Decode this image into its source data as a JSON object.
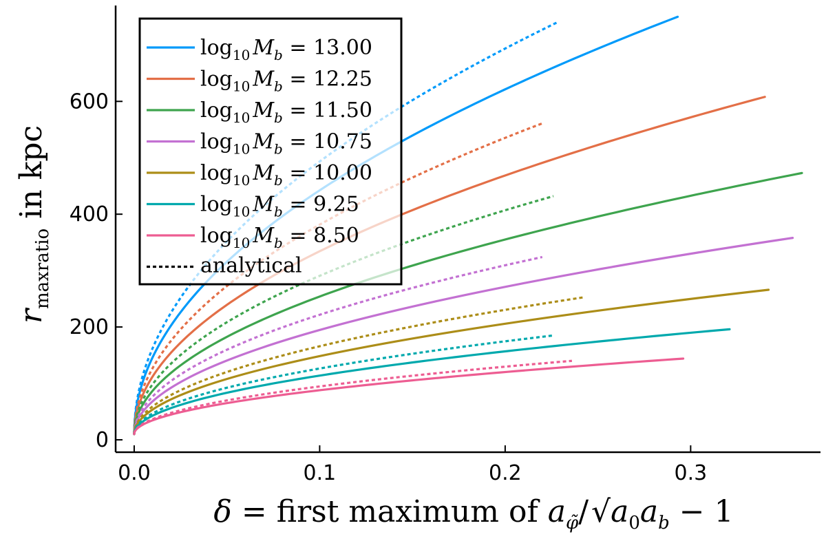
{
  "chart_data": {
    "type": "line",
    "title": "",
    "xlabel": {
      "delta": "δ",
      "equals": " = first maximum of ",
      "a": "a",
      "a_sub": "φ̃",
      "slash": "/",
      "radicand": "a",
      "radicand_sub0": "0",
      "radicand_a": "a",
      "radicand_sub_b": "b",
      "tail": " − 1"
    },
    "ylabel": {
      "r": "r",
      "sub": "maxratio",
      "rest": " in kpc"
    },
    "xlim": [
      -0.01,
      0.37
    ],
    "ylim": [
      -22,
      770
    ],
    "xticks": [
      0.0,
      0.1,
      0.2,
      0.3
    ],
    "xtick_labels": [
      "0.0",
      "0.1",
      "0.2",
      "0.3"
    ],
    "yticks": [
      0,
      200,
      400,
      600
    ],
    "ytick_labels": [
      "0",
      "200",
      "400",
      "600"
    ],
    "grid": false,
    "legend_placement": "top-left",
    "legend_prefix": "log",
    "legend_prefix_sub": "10",
    "legend_var": "M",
    "legend_var_sub": "b",
    "series": [
      {
        "name": "13.00",
        "color": "#009AFA",
        "numeric": {
          "x_end": 0.293,
          "y_end": 750
        },
        "analytical": {
          "x_end": 0.228,
          "y_end": 740
        }
      },
      {
        "name": "12.25",
        "color": "#E36F47",
        "numeric": {
          "x_end": 0.34,
          "y_end": 608
        },
        "analytical": {
          "x_end": 0.22,
          "y_end": 561
        }
      },
      {
        "name": "11.50",
        "color": "#3EA44E",
        "numeric": {
          "x_end": 0.36,
          "y_end": 473
        },
        "analytical": {
          "x_end": 0.226,
          "y_end": 432
        }
      },
      {
        "name": "10.75",
        "color": "#C371D2",
        "numeric": {
          "x_end": 0.355,
          "y_end": 358
        },
        "analytical": {
          "x_end": 0.22,
          "y_end": 324
        }
      },
      {
        "name": "10.00",
        "color": "#AC8D18",
        "numeric": {
          "x_end": 0.342,
          "y_end": 266
        },
        "analytical": {
          "x_end": 0.243,
          "y_end": 253
        }
      },
      {
        "name": "9.25",
        "color": "#00A9AD",
        "numeric": {
          "x_end": 0.321,
          "y_end": 196
        },
        "analytical": {
          "x_end": 0.226,
          "y_end": 185
        }
      },
      {
        "name": "8.50",
        "color": "#ED5D92",
        "numeric": {
          "x_end": 0.296,
          "y_end": 144
        },
        "analytical": {
          "x_end": 0.236,
          "y_end": 140
        }
      }
    ],
    "analytical_label": "analytical",
    "y_start": 10
  }
}
